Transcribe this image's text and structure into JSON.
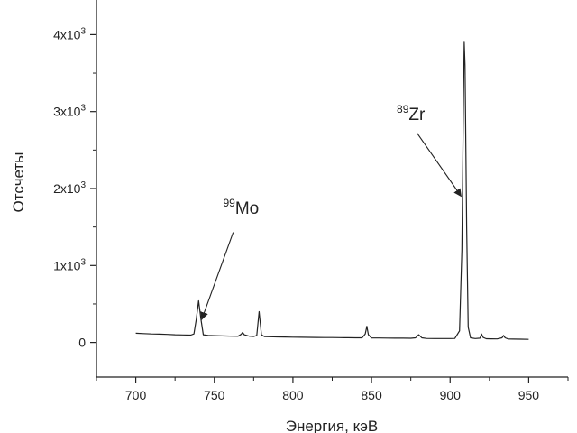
{
  "chart_data": {
    "type": "line",
    "title": "",
    "xlabel": "Энергия, кэВ",
    "ylabel": "Отсчеты",
    "xlim": [
      675,
      975
    ],
    "ylim": [
      -450,
      4450
    ],
    "xticks": [
      700,
      750,
      800,
      850,
      900,
      950
    ],
    "xtick_labels": [
      "700",
      "750",
      "800",
      "850",
      "900",
      "950"
    ],
    "yticks": [
      0,
      1000,
      2000,
      3000,
      4000
    ],
    "ytick_labels": [
      {
        "base": "0",
        "exp": ""
      },
      {
        "base": "1x10",
        "exp": "3"
      },
      {
        "base": "2x10",
        "exp": "3"
      },
      {
        "base": "3x10",
        "exp": "3"
      },
      {
        "base": "4x10",
        "exp": "3"
      }
    ],
    "grid": false,
    "series": [
      {
        "x": [
          700,
          705,
          710,
          715,
          720,
          725,
          730,
          735,
          737,
          738.5,
          740,
          741.5,
          743,
          746,
          750,
          755,
          760,
          765,
          767,
          768,
          769,
          772,
          775,
          777,
          778.5,
          780,
          782,
          785,
          790,
          795,
          800,
          805,
          810,
          815,
          820,
          825,
          830,
          835,
          840,
          844,
          846,
          847,
          848,
          850,
          855,
          860,
          865,
          870,
          875,
          878,
          880,
          882,
          885,
          890,
          895,
          900,
          903,
          906,
          907.5,
          908.5,
          909,
          909.5,
          910.5,
          911.5,
          913,
          916,
          919,
          920,
          921,
          923,
          926,
          930,
          933,
          934,
          935,
          937,
          940,
          945,
          950
        ],
        "y": [
          120,
          115,
          110,
          108,
          105,
          100,
          98,
          95,
          110,
          300,
          540,
          300,
          100,
          90,
          88,
          85,
          82,
          80,
          105,
          130,
          100,
          82,
          78,
          90,
          400,
          100,
          75,
          74,
          72,
          70,
          68,
          67,
          66,
          65,
          64,
          63,
          62,
          61,
          60,
          60,
          110,
          210,
          100,
          58,
          57,
          56,
          55,
          55,
          54,
          60,
          100,
          60,
          52,
          50,
          50,
          50,
          52,
          150,
          1200,
          3200,
          3900,
          3600,
          1500,
          200,
          60,
          50,
          55,
          110,
          65,
          48,
          47,
          46,
          60,
          90,
          60,
          45,
          44,
          42,
          40
        ],
        "color": "#222222"
      }
    ],
    "annotations": [
      {
        "id": "mo99",
        "mass": "99",
        "symbol": "Mo",
        "label_x": 767,
        "label_y": 1670,
        "tail_x": 762,
        "tail_y": 1430,
        "tip_x": 742,
        "tip_y": 300
      },
      {
        "id": "zr89",
        "mass": "89",
        "symbol": "Zr",
        "label_x": 875,
        "label_y": 2890,
        "tail_x": 879,
        "tail_y": 2720,
        "tip_x": 907,
        "tip_y": 1900
      }
    ]
  }
}
